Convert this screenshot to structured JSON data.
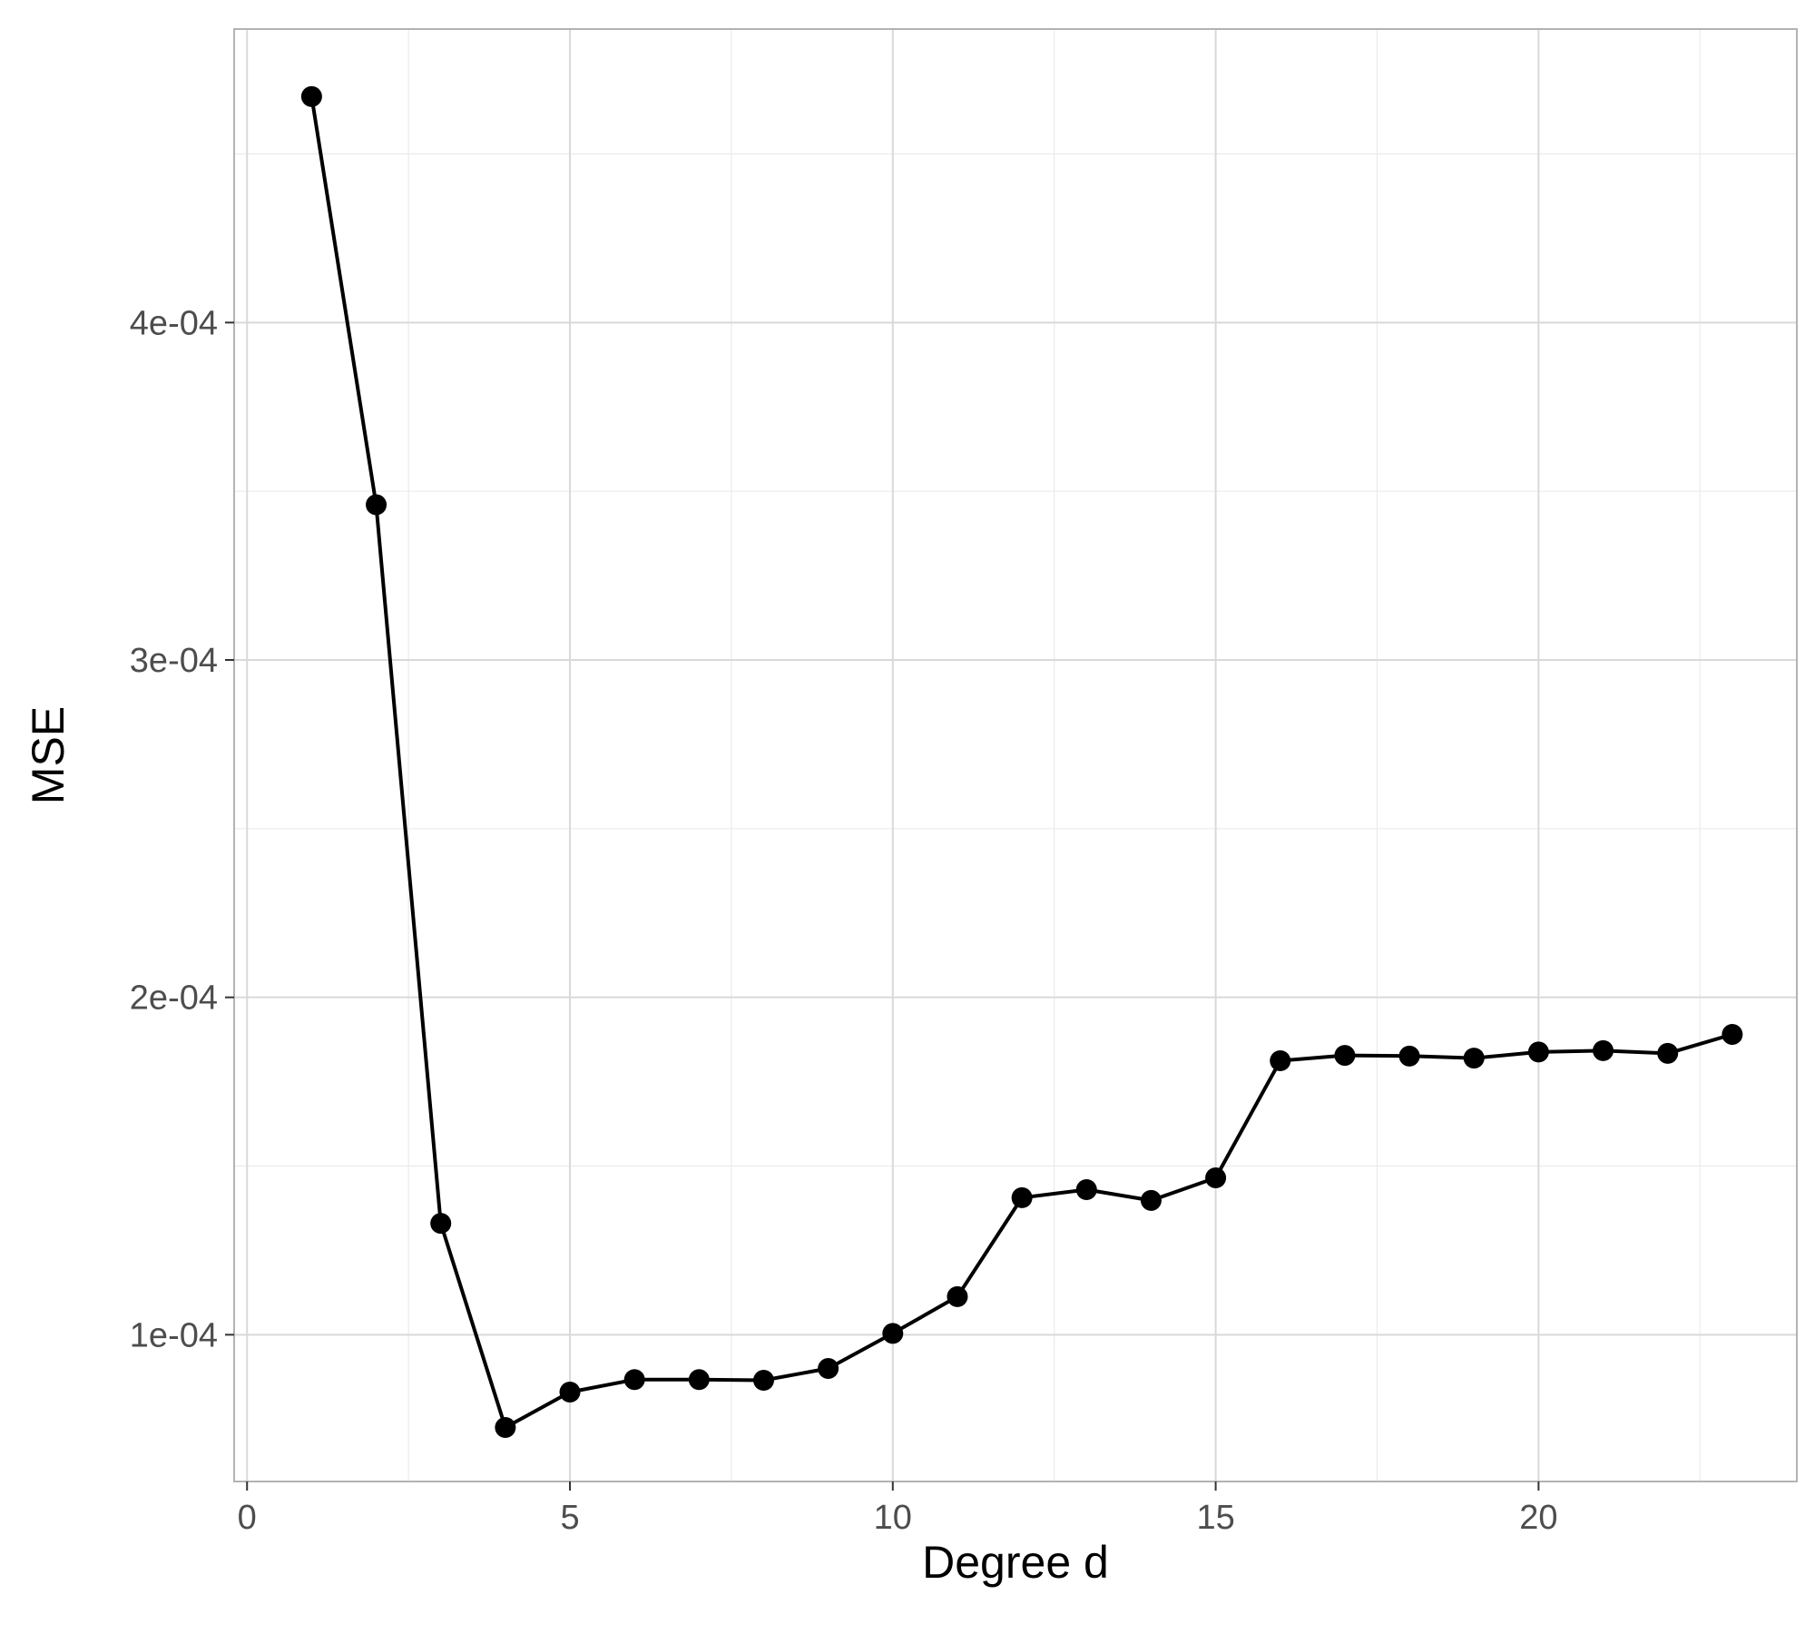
{
  "chart_data": {
    "type": "line",
    "title": "",
    "xlabel": "Degree d",
    "ylabel": "MSE",
    "xlim": [
      -0.2,
      24.0
    ],
    "ylim": [
      5.65e-05,
      0.000487
    ],
    "x_major_ticks": [
      0,
      5,
      10,
      15,
      20
    ],
    "x_tick_labels": [
      "0",
      "5",
      "10",
      "15",
      "20"
    ],
    "x_minor_gridlines": [
      2.5,
      7.5,
      12.5,
      17.5,
      22.5
    ],
    "y_major_ticks": [
      0.0001,
      0.0002,
      0.0003,
      0.0004
    ],
    "y_tick_labels": [
      "1e-04",
      "2e-04",
      "3e-04",
      "4e-04"
    ],
    "y_minor_gridlines": [
      0.00015,
      0.00025,
      0.00035,
      0.00045
    ],
    "grid": true,
    "series": [
      {
        "color": "#000000",
        "markers": true,
        "x": [
          1,
          2,
          3,
          4,
          5,
          6,
          7,
          8,
          9,
          10,
          11,
          12,
          13,
          14,
          15,
          16,
          17,
          18,
          19,
          20,
          21,
          22,
          23
        ],
        "y": [
          0.000467,
          0.000346,
          0.000133,
          7.25e-05,
          8.3e-05,
          8.67e-05,
          8.67e-05,
          8.65e-05,
          9e-05,
          0.0001004,
          0.0001113,
          0.0001406,
          0.000143,
          0.0001398,
          0.0001465,
          0.0001812,
          0.0001828,
          0.0001826,
          0.000182,
          0.0001838,
          0.0001842,
          0.0001834,
          0.000189
        ]
      }
    ]
  }
}
